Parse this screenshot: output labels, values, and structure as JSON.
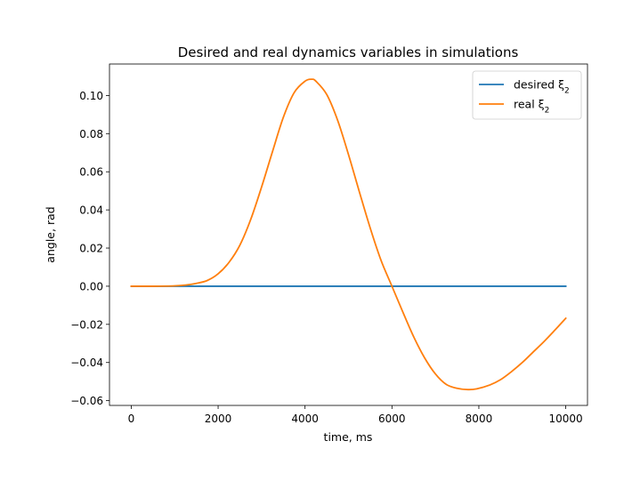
{
  "chart_data": {
    "type": "line",
    "title": "Desired and real dynamics variables in simulations",
    "xlabel": "time, ms",
    "ylabel": "angle, rad",
    "xlim": [
      -500,
      10500
    ],
    "ylim": [
      -0.0625,
      0.1165
    ],
    "xticks": [
      0,
      2000,
      4000,
      6000,
      8000,
      10000
    ],
    "yticks": [
      -0.06,
      -0.04,
      -0.02,
      0.0,
      0.02,
      0.04,
      0.06,
      0.08,
      0.1
    ],
    "ytick_labels": [
      "−0.06",
      "−0.04",
      "−0.02",
      "0.00",
      "0.02",
      "0.04",
      "0.06",
      "0.08",
      "0.10"
    ],
    "grid": false,
    "legend_position": "top-right",
    "series": [
      {
        "name": "desired ξ",
        "name_sub": "2",
        "color": "#1f77b4",
        "x": [
          0,
          10000
        ],
        "y": [
          0,
          0
        ]
      },
      {
        "name": "real ξ",
        "name_sub": "2",
        "color": "#ff7f0e",
        "x": [
          0,
          500,
          1000,
          1250,
          1500,
          1750,
          2000,
          2250,
          2500,
          2750,
          3000,
          3250,
          3500,
          3750,
          4000,
          4150,
          4250,
          4500,
          4750,
          5000,
          5250,
          5500,
          5750,
          6000,
          6250,
          6500,
          6750,
          7000,
          7250,
          7500,
          7750,
          7950,
          8250,
          8500,
          8750,
          9000,
          9250,
          9500,
          9750,
          10000
        ],
        "y": [
          0,
          0,
          0.0002,
          0.0006,
          0.0015,
          0.003,
          0.0065,
          0.0125,
          0.0215,
          0.035,
          0.052,
          0.0705,
          0.0885,
          0.1015,
          0.1075,
          0.1085,
          0.1075,
          0.1005,
          0.087,
          0.069,
          0.0495,
          0.0305,
          0.0135,
          0.0,
          -0.0135,
          -0.0265,
          -0.0375,
          -0.046,
          -0.0515,
          -0.0535,
          -0.0542,
          -0.0538,
          -0.0518,
          -0.049,
          -0.0448,
          -0.04,
          -0.0345,
          -0.029,
          -0.023,
          -0.0168
        ]
      }
    ]
  }
}
